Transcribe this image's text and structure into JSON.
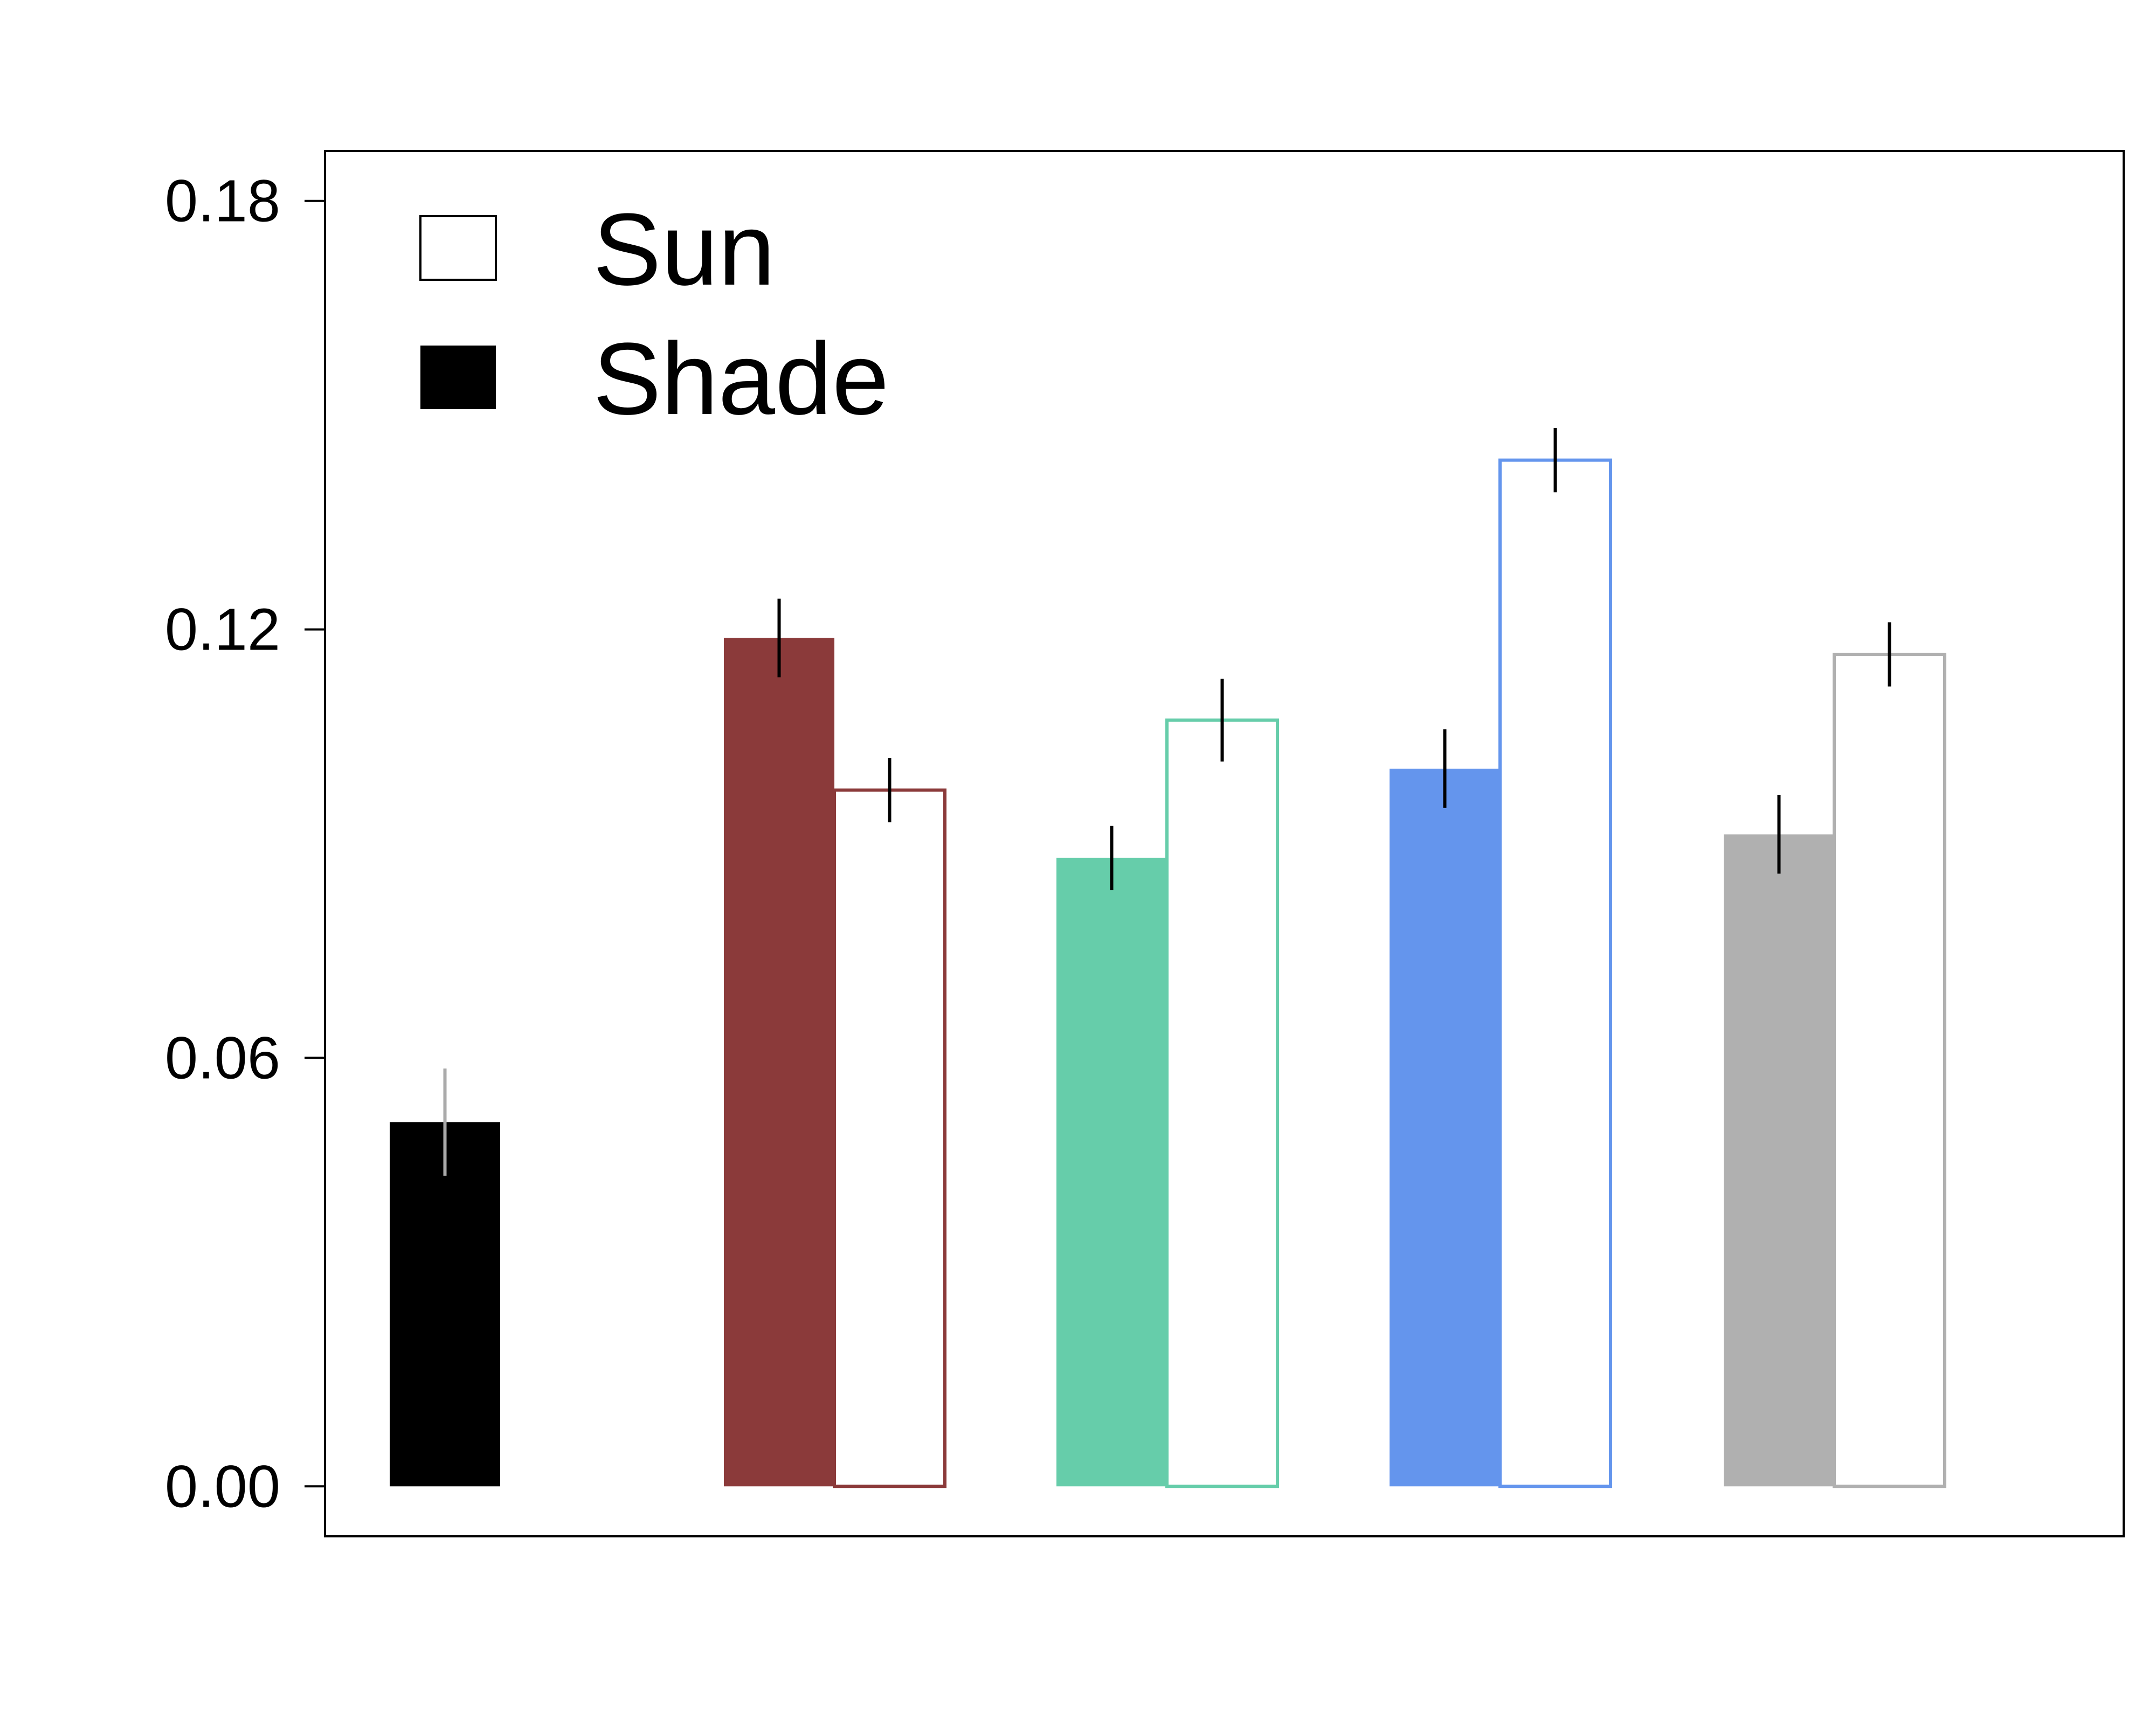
{
  "chart_data": {
    "type": "bar",
    "title": "",
    "xlabel": "",
    "ylabel": "",
    "ylim": [
      -0.007,
      0.187
    ],
    "yticks": [
      "0.00",
      "0.06",
      "0.12",
      "0.18"
    ],
    "grid": false,
    "legend": {
      "placement": "top-left",
      "entries": [
        {
          "label": "Sun",
          "style": "open"
        },
        {
          "label": "Shade",
          "style": "filled"
        }
      ]
    },
    "groups": [
      {
        "color": "#000000",
        "error_color": "#aaaaaa",
        "shade": {
          "value": 0.051,
          "error": 0.0075
        }
      },
      {
        "color": "#8b3a3a",
        "error_color": "#000000",
        "shade": {
          "value": 0.1188,
          "error": 0.0055
        },
        "sun": {
          "value": 0.0975,
          "error": 0.0045
        }
      },
      {
        "color": "#66cdaa",
        "error_color": "#000000",
        "shade": {
          "value": 0.088,
          "error": 0.0045
        },
        "sun": {
          "value": 0.1073,
          "error": 0.0058
        }
      },
      {
        "color": "#6495ed",
        "error_color": "#000000",
        "shade": {
          "value": 0.1005,
          "error": 0.0055
        },
        "sun": {
          "value": 0.1437,
          "error": 0.0045
        }
      },
      {
        "color": "#b0b0b0",
        "error_color": "#000000",
        "shade": {
          "value": 0.0913,
          "error": 0.0055
        },
        "sun": {
          "value": 0.1165,
          "error": 0.0045
        }
      }
    ]
  }
}
